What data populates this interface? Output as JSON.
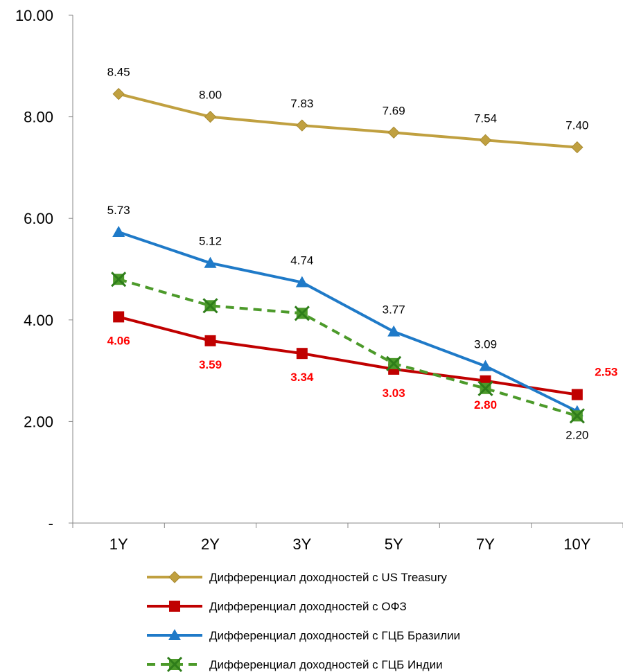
{
  "chart_data": {
    "type": "line",
    "categories": [
      "1Y",
      "2Y",
      "3Y",
      "5Y",
      "7Y",
      "10Y"
    ],
    "ylim": [
      0,
      10
    ],
    "yticks": [
      {
        "value": 0,
        "label": "-"
      },
      {
        "value": 2,
        "label": "2.00"
      },
      {
        "value": 4,
        "label": "4.00"
      },
      {
        "value": 6,
        "label": "6.00"
      },
      {
        "value": 8,
        "label": "8.00"
      },
      {
        "value": 10,
        "label": "10.00"
      }
    ],
    "series": [
      {
        "name": "Дифференциал доходностей с US Treasury",
        "values": [
          8.45,
          8.0,
          7.83,
          7.69,
          7.54,
          7.4
        ],
        "labels": [
          "8.45",
          "8.00",
          "7.83",
          "7.69",
          "7.54",
          "7.40"
        ],
        "color": "#C0A040",
        "marker": "diamond",
        "dash": "solid",
        "label_color": "#000000",
        "label_bold": false
      },
      {
        "name": "Дифференциал доходностей с ОФЗ",
        "values": [
          4.06,
          3.59,
          3.34,
          3.03,
          2.8,
          2.53
        ],
        "labels": [
          "4.06",
          "3.59",
          "3.34",
          "3.03",
          "2.80",
          "2.53"
        ],
        "color": "#C00000",
        "marker": "square",
        "dash": "solid",
        "label_color": "#FF0000",
        "label_bold": true
      },
      {
        "name": "Дифференциал доходностей с ГЦБ Бразилии",
        "values": [
          5.73,
          5.12,
          4.74,
          3.77,
          3.09,
          2.2
        ],
        "labels": [
          "5.73",
          "5.12",
          "4.74",
          "3.77",
          "3.09",
          "2.20"
        ],
        "color": "#1F7AC8",
        "marker": "triangle",
        "dash": "solid",
        "label_color": "#000000",
        "label_bold": false
      },
      {
        "name": "Дифференциал доходностей с ГЦБ Индии",
        "values": [
          4.8,
          4.28,
          4.13,
          3.14,
          2.65,
          2.11
        ],
        "labels": [],
        "color": "#4C9A2A",
        "marker": "star",
        "dash": "dashed",
        "label_color": "#000000",
        "label_bold": false
      }
    ],
    "legend": "bottom",
    "grid": false
  }
}
